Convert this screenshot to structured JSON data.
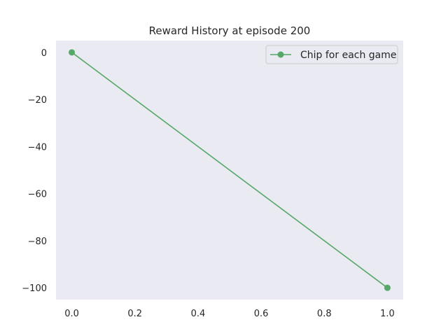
{
  "chart_data": {
    "type": "line",
    "title": "Reward History at episode 200",
    "xlabel": "",
    "ylabel": "",
    "xlim": [
      -0.05,
      1.05
    ],
    "ylim": [
      -105,
      5
    ],
    "xticks": [
      0.0,
      0.2,
      0.4,
      0.6,
      0.8,
      1.0
    ],
    "xtick_labels": [
      "0.0",
      "0.2",
      "0.4",
      "0.6",
      "0.8",
      "1.0"
    ],
    "yticks": [
      0,
      -20,
      -40,
      -60,
      -80,
      -100
    ],
    "ytick_labels": [
      "0",
      "−20",
      "−40",
      "−60",
      "−80",
      "−100"
    ],
    "grid": false,
    "legend_position": "top-right",
    "background_color": "#eaeaf2",
    "series": [
      {
        "name": "Chip for each game",
        "color": "#55a868",
        "marker": "circle",
        "x": [
          0,
          1
        ],
        "y": [
          0,
          -100
        ]
      }
    ]
  }
}
